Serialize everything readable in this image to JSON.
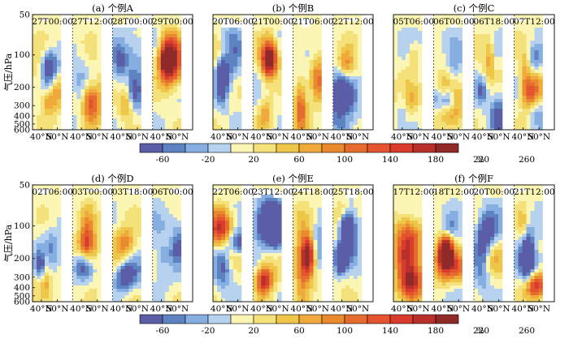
{
  "chart_data": [
    {
      "type": "heatmap",
      "title": "(a) 个例A",
      "ylabel": "气压/hPa",
      "yticks": [
        "50",
        "100",
        "200",
        "300",
        "400",
        "500",
        "600"
      ],
      "xticks": [
        "40°N",
        "50°N"
      ],
      "subpanel_labels": [
        "27T00:00",
        "27T12:00",
        "28T00:00",
        "29T00:00"
      ]
    },
    {
      "type": "heatmap",
      "title": "(b) 个例B",
      "subpanel_labels": [
        "20T06:00",
        "21T00:00",
        "21T06:00",
        "22T12:00"
      ],
      "xticks": [
        "40°N",
        "50°N"
      ]
    },
    {
      "type": "heatmap",
      "title": "(c) 个例C",
      "subpanel_labels": [
        "05T06:00",
        "06T00:00",
        "06T18:00",
        "07T12:00"
      ],
      "xticks": [
        "40°N",
        "50°N"
      ]
    },
    {
      "type": "heatmap",
      "title": "(d) 个例D",
      "ylabel": "气压/hPa",
      "yticks": [
        "50",
        "100",
        "200",
        "300",
        "400",
        "500",
        "600"
      ],
      "subpanel_labels": [
        "02T06:00",
        "03T00:00",
        "03T18:00",
        "06T00:00"
      ],
      "xticks": [
        "40°N",
        "50°N"
      ]
    },
    {
      "type": "heatmap",
      "title": "(e) 个例E",
      "subpanel_labels": [
        "22T06:00",
        "23T12:00",
        "24T18:00",
        "25T18:00"
      ],
      "xticks": [
        "40°N",
        "50°N"
      ]
    },
    {
      "type": "heatmap",
      "title": "(f) 个例F",
      "subpanel_labels": [
        "17T12:00",
        "18T12:00",
        "20T00:00",
        "21T12:00"
      ],
      "xticks": [
        "40°N",
        "50°N"
      ]
    }
  ],
  "colorbar": {
    "labels": [
      "-60",
      "-20",
      "20",
      "60",
      "100",
      "140",
      "180",
      "220",
      "260"
    ],
    "unit": "%",
    "colors": [
      "#5b5ea6",
      "#5e83c2",
      "#86aee0",
      "#b6d2ee",
      "#fbf6b3",
      "#f5e17a",
      "#eec64a",
      "#f0aa3c",
      "#ea8a2e",
      "#e66b2f",
      "#e4542f",
      "#d93b2c",
      "#b9302a",
      "#8f2a28"
    ]
  }
}
